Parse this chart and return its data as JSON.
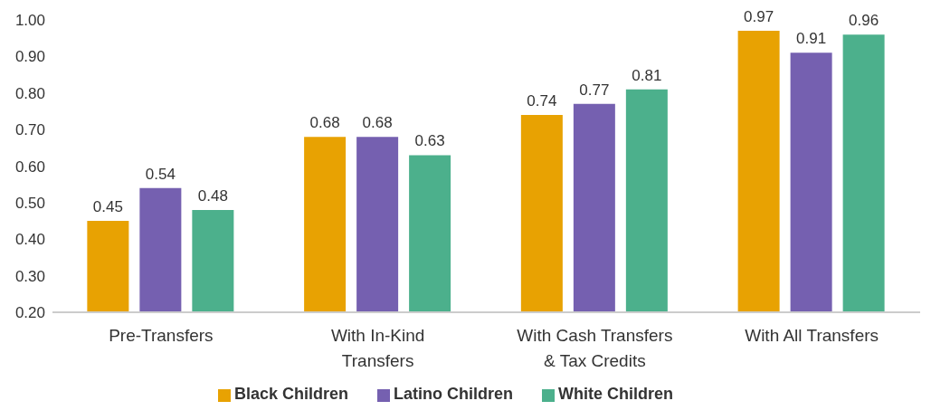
{
  "chart_data": {
    "type": "bar",
    "categories": [
      "Pre-Transfers",
      "With In-Kind Transfers",
      "With Cash Transfers & Tax Credits",
      "With All Transfers"
    ],
    "series": [
      {
        "name": "Black Children",
        "color": "#e8a202",
        "values": [
          0.45,
          0.68,
          0.74,
          0.97
        ]
      },
      {
        "name": "Latino Children",
        "color": "#7560b0",
        "values": [
          0.54,
          0.68,
          0.77,
          0.91
        ]
      },
      {
        "name": "White Children",
        "color": "#4cb08c",
        "values": [
          0.48,
          0.63,
          0.81,
          0.96
        ]
      }
    ],
    "ylim": [
      0.2,
      1.0
    ],
    "yticks": [
      {
        "value": 0.2,
        "label": "0.20"
      },
      {
        "value": 0.3,
        "label": "0.30"
      },
      {
        "value": 0.4,
        "label": "0.40"
      },
      {
        "value": 0.5,
        "label": "0.50"
      },
      {
        "value": 0.6,
        "label": "0.60"
      },
      {
        "value": 0.7,
        "label": "0.70"
      },
      {
        "value": 0.8,
        "label": "0.80"
      },
      {
        "value": 0.9,
        "label": "0.90"
      },
      {
        "value": 1.0,
        "label": "1.00"
      }
    ],
    "data_labels": true,
    "grid": false,
    "legend": "bottom"
  }
}
